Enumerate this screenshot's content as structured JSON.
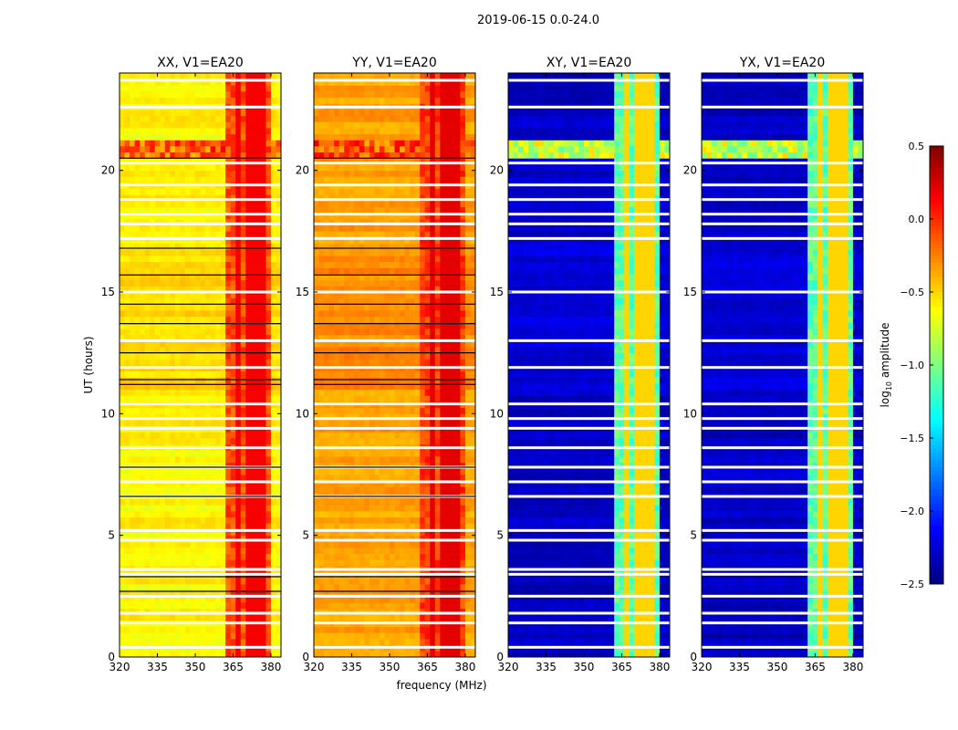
{
  "chart_data": {
    "type": "heatmap",
    "suptitle": "2019-06-15 0.0-24.0",
    "xlabel": "frequency (MHz)",
    "ylabel": "UT (hours)",
    "xlim": [
      320,
      384
    ],
    "ylim": [
      0,
      24
    ],
    "xticks": [
      "320",
      "335",
      "350",
      "365",
      "380"
    ],
    "xtick_values": [
      320,
      335,
      350,
      365,
      380
    ],
    "yticks": [
      "0",
      "5",
      "10",
      "15",
      "20"
    ],
    "ytick_values": [
      0,
      5,
      10,
      15,
      20
    ],
    "colorbar": {
      "label": "log10 amplitude",
      "label_main": "log",
      "label_sub": "10",
      "label_rest": " amplitude",
      "colormap": "jet",
      "range": [
        -2.5,
        0.5
      ],
      "ticks": [
        "0.5",
        "0.0",
        "−0.5",
        "−1.0",
        "−1.5",
        "−2.0",
        "−2.5"
      ],
      "tick_values": [
        0.5,
        0.0,
        -0.5,
        -1.0,
        -1.5,
        -2.0,
        -2.5
      ]
    },
    "panels": [
      {
        "title": "XX, V1=EA20",
        "base": -0.6,
        "rfi": -0.1,
        "rfi_peak": 0.15,
        "late": -0.45
      },
      {
        "title": "YY, V1=EA20",
        "base": -0.35,
        "rfi": -0.05,
        "rfi_peak": 0.2,
        "late": -0.25
      },
      {
        "title": "XY, V1=EA20",
        "base": -2.3,
        "rfi": -1.1,
        "rfi_peak": -0.5,
        "late": -2.2
      },
      {
        "title": "YX, V1=EA20",
        "base": -2.3,
        "rfi": -1.1,
        "rfi_peak": -0.5,
        "late": -2.2
      }
    ],
    "rfi_band_mhz": [
      362,
      379
    ],
    "rfi_lines_mhz": [
      367,
      372,
      376
    ],
    "flagged_hours": [
      0.4,
      1.4,
      1.8,
      2.5,
      3.4,
      3.6,
      4.8,
      5.2,
      6.6,
      7.2,
      7.8,
      8.6,
      9.4,
      9.8,
      10.4,
      11.9,
      13.0,
      15.0,
      17.2,
      17.8,
      18.2,
      18.8,
      19.4,
      20.3,
      22.6,
      23.7
    ],
    "black_lines_hours": [
      2.7,
      3.3,
      6.6,
      7.8,
      11.2,
      11.4,
      12.5,
      13.7,
      14.5,
      15.7,
      16.8,
      20.5
    ]
  }
}
